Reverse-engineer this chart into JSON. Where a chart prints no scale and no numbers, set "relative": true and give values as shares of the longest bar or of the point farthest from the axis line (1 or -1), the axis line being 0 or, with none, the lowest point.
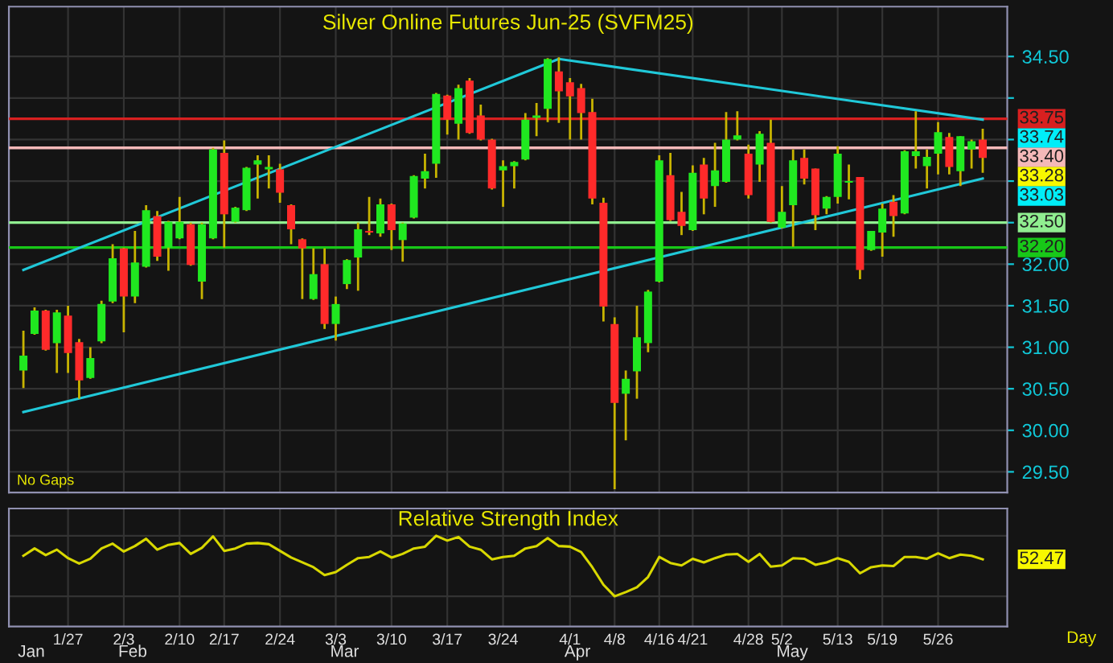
{
  "chart_data": [
    {
      "type": "candlestick",
      "title": "Silver Online Futures Jun-25 (SVFM25)",
      "categories": [
        null,
        null,
        null,
        null,
        null,
        null,
        null,
        null,
        null,
        null,
        null,
        null,
        null,
        null,
        null,
        null,
        null,
        null,
        null,
        null,
        null,
        null,
        null,
        null,
        null,
        null,
        null,
        null,
        null,
        null,
        null,
        null,
        null,
        null,
        null,
        null,
        null,
        null,
        null,
        null,
        null,
        null,
        null,
        null,
        null,
        null,
        null,
        null,
        null,
        null,
        null,
        null,
        null,
        null,
        null,
        null,
        null,
        null,
        null,
        null,
        null,
        null,
        null,
        null,
        null,
        null,
        null,
        null,
        null,
        null,
        null,
        null,
        null,
        null,
        null,
        null,
        null,
        null,
        null,
        null,
        null,
        null,
        null,
        null,
        null,
        null,
        null
      ],
      "ohlc": [
        [
          30.72,
          31.2,
          30.51,
          30.9
        ],
        [
          31.16,
          31.48,
          31.15,
          31.44
        ],
        [
          31.44,
          31.45,
          30.96,
          30.97
        ],
        [
          31.05,
          31.45,
          30.69,
          31.42
        ],
        [
          31.38,
          31.5,
          30.69,
          30.93
        ],
        [
          31.06,
          31.1,
          30.38,
          30.6
        ],
        [
          30.63,
          31.0,
          30.62,
          30.87
        ],
        [
          31.07,
          31.56,
          31.05,
          31.52
        ],
        [
          31.55,
          32.24,
          31.53,
          32.07
        ],
        [
          32.19,
          32.2,
          31.18,
          31.61
        ],
        [
          31.61,
          32.4,
          31.53,
          32.02
        ],
        [
          31.97,
          32.71,
          31.96,
          32.65
        ],
        [
          32.58,
          32.64,
          32.04,
          32.09
        ],
        [
          32.2,
          32.52,
          31.92,
          32.51
        ],
        [
          32.31,
          32.81,
          32.3,
          32.51
        ],
        [
          32.48,
          32.5,
          31.98,
          31.99
        ],
        [
          31.79,
          32.5,
          31.58,
          32.48
        ],
        [
          32.31,
          33.4,
          32.3,
          33.38
        ],
        [
          33.34,
          33.49,
          32.2,
          32.6
        ],
        [
          32.51,
          32.69,
          32.5,
          32.68
        ],
        [
          32.65,
          33.17,
          32.64,
          33.16
        ],
        [
          33.2,
          33.31,
          32.79,
          33.25
        ],
        [
          33.14,
          33.31,
          32.91,
          33.17
        ],
        [
          33.14,
          33.21,
          32.74,
          32.86
        ],
        [
          32.71,
          32.72,
          32.24,
          32.42
        ],
        [
          32.3,
          32.31,
          31.58,
          32.19
        ],
        [
          31.58,
          32.19,
          31.57,
          31.88
        ],
        [
          32.0,
          32.19,
          31.22,
          31.28
        ],
        [
          31.28,
          31.61,
          31.08,
          31.52
        ],
        [
          31.76,
          32.06,
          31.7,
          32.05
        ],
        [
          32.08,
          32.5,
          31.68,
          32.42
        ],
        [
          32.4,
          32.81,
          32.35,
          32.38
        ],
        [
          32.37,
          32.79,
          32.33,
          32.72
        ],
        [
          32.72,
          32.73,
          32.17,
          32.41
        ],
        [
          32.29,
          32.5,
          32.03,
          32.49
        ],
        [
          32.56,
          33.07,
          32.55,
          33.06
        ],
        [
          33.03,
          33.33,
          32.91,
          33.12
        ],
        [
          33.21,
          34.06,
          33.04,
          34.05
        ],
        [
          34.03,
          34.04,
          33.56,
          33.74
        ],
        [
          33.69,
          34.16,
          33.5,
          34.12
        ],
        [
          34.21,
          34.24,
          33.57,
          33.58
        ],
        [
          33.79,
          33.92,
          33.49,
          33.5
        ],
        [
          33.5,
          33.51,
          32.9,
          32.91
        ],
        [
          33.13,
          33.25,
          32.69,
          33.18
        ],
        [
          33.18,
          33.24,
          32.91,
          33.23
        ],
        [
          33.26,
          33.82,
          33.25,
          33.74
        ],
        [
          33.76,
          33.94,
          33.54,
          33.79
        ],
        [
          33.87,
          34.48,
          33.71,
          34.47
        ],
        [
          34.32,
          34.49,
          33.7,
          34.08
        ],
        [
          34.19,
          34.24,
          33.5,
          34.02
        ],
        [
          34.12,
          34.17,
          33.5,
          33.82
        ],
        [
          33.83,
          33.99,
          32.72,
          32.79
        ],
        [
          32.74,
          32.8,
          31.31,
          31.49
        ],
        [
          31.28,
          31.36,
          29.29,
          30.33
        ],
        [
          30.44,
          30.72,
          29.88,
          30.62
        ],
        [
          30.71,
          31.5,
          30.38,
          31.12
        ],
        [
          31.05,
          31.69,
          30.94,
          31.67
        ],
        [
          31.79,
          33.31,
          31.78,
          33.25
        ],
        [
          33.07,
          33.34,
          32.52,
          32.53
        ],
        [
          32.63,
          32.87,
          32.35,
          32.46
        ],
        [
          32.41,
          33.19,
          32.4,
          33.1
        ],
        [
          33.2,
          33.28,
          32.6,
          32.79
        ],
        [
          32.94,
          33.46,
          32.69,
          33.13
        ],
        [
          32.99,
          33.83,
          32.98,
          33.5
        ],
        [
          33.5,
          33.84,
          33.49,
          33.55
        ],
        [
          33.33,
          33.44,
          32.79,
          32.83
        ],
        [
          33.2,
          33.6,
          32.99,
          33.57
        ],
        [
          33.46,
          33.74,
          32.5,
          32.51
        ],
        [
          32.44,
          32.94,
          32.43,
          32.63
        ],
        [
          32.71,
          33.38,
          32.21,
          33.25
        ],
        [
          33.28,
          33.38,
          32.96,
          33.03
        ],
        [
          33.15,
          33.15,
          32.41,
          32.59
        ],
        [
          32.67,
          32.82,
          32.6,
          32.81
        ],
        [
          32.81,
          33.42,
          32.73,
          33.33
        ],
        [
          32.98,
          33.2,
          32.78,
          33.0
        ],
        [
          33.05,
          33.05,
          31.82,
          31.93
        ],
        [
          32.17,
          32.4,
          32.16,
          32.4
        ],
        [
          32.38,
          32.73,
          32.09,
          32.67
        ],
        [
          32.75,
          32.83,
          32.33,
          32.58
        ],
        [
          32.61,
          33.37,
          32.6,
          33.36
        ],
        [
          33.3,
          33.84,
          33.15,
          33.36
        ],
        [
          33.18,
          33.38,
          32.91,
          33.29
        ],
        [
          33.33,
          33.71,
          33.08,
          33.59
        ],
        [
          33.53,
          33.58,
          33.08,
          33.17
        ],
        [
          33.12,
          33.54,
          32.94,
          33.54
        ],
        [
          33.38,
          33.5,
          33.15,
          33.48
        ],
        [
          33.5,
          33.63,
          33.1,
          33.28
        ]
      ],
      "series": [
        {
          "type": "line",
          "color": "#20c8d8",
          "values": [
            31.93,
            null,
            null,
            null,
            null,
            null,
            null,
            null,
            null,
            null,
            null,
            null,
            null,
            null,
            null,
            null,
            null,
            null,
            null,
            null,
            null,
            null,
            null,
            null,
            null,
            null,
            null,
            null,
            null,
            null,
            null,
            null,
            null,
            null,
            null,
            null,
            null,
            null,
            null,
            null,
            null,
            null,
            null,
            null,
            null,
            null,
            null,
            null,
            34.47,
            null,
            null,
            null,
            null,
            null,
            null,
            null,
            null,
            null,
            null,
            null,
            null,
            null,
            null,
            null,
            null,
            null,
            null,
            null,
            null,
            null,
            null,
            null,
            null,
            null,
            null,
            null,
            null,
            null,
            null,
            null,
            null,
            null,
            null,
            null,
            null,
            null,
            33.74
          ]
        },
        {
          "type": "line",
          "color": "#20c8d8",
          "values": [
            30.22,
            null,
            null,
            null,
            null,
            null,
            null,
            null,
            null,
            null,
            null,
            null,
            null,
            null,
            null,
            null,
            null,
            null,
            null,
            null,
            null,
            null,
            null,
            null,
            null,
            null,
            null,
            null,
            null,
            null,
            null,
            null,
            null,
            null,
            null,
            null,
            null,
            null,
            null,
            null,
            null,
            null,
            null,
            null,
            null,
            null,
            null,
            null,
            null,
            null,
            null,
            null,
            null,
            null,
            null,
            null,
            null,
            null,
            null,
            null,
            null,
            null,
            null,
            null,
            null,
            null,
            null,
            null,
            null,
            null,
            null,
            null,
            null,
            null,
            null,
            null,
            null,
            null,
            null,
            null,
            null,
            null,
            null,
            null,
            null,
            null,
            33.03
          ]
        }
      ],
      "ylim": [
        29.25,
        35.1
      ],
      "yticks": [
        {
          "value": 29.5,
          "label": "29.50"
        },
        {
          "value": 30,
          "label": "30.00"
        },
        {
          "value": 30.5,
          "label": "30.50"
        },
        {
          "value": 31,
          "label": "31.00"
        },
        {
          "value": 31.5,
          "label": "31.50"
        },
        {
          "value": 32,
          "label": "32.00"
        },
        {
          "value": 32.5,
          "label": null
        },
        {
          "value": 33,
          "label": null
        },
        {
          "value": 33.5,
          "label": null
        },
        {
          "value": 34,
          "label": null
        },
        {
          "value": 34.5,
          "label": "34.50"
        }
      ],
      "ref_lines": [
        {
          "axis": "y",
          "value": 33.75,
          "label": "33.75",
          "color": "#d82020"
        },
        {
          "axis": "y",
          "value": 33.4,
          "label": "33.40",
          "color": "#f4b8b8"
        },
        {
          "axis": "y",
          "value": 32.5,
          "label": "32.50",
          "color": "#90ee90"
        },
        {
          "axis": "y",
          "value": 32.2,
          "label": "32.20",
          "color": "#18c818"
        }
      ],
      "annotations": [
        "No Gaps",
        "33.74",
        "33.28",
        "33.03"
      ],
      "tick_labels": "y",
      "grid": true
    },
    {
      "type": "line",
      "title": "Relative Strength Index",
      "relative": true,
      "categories": [
        null,
        null,
        null,
        null,
        "1/27",
        null,
        null,
        null,
        null,
        "2/3",
        null,
        null,
        null,
        null,
        "2/10",
        null,
        null,
        null,
        "2/17",
        null,
        null,
        null,
        null,
        "2/24",
        null,
        null,
        null,
        null,
        "3/3",
        null,
        null,
        null,
        null,
        "3/10",
        null,
        null,
        null,
        null,
        "3/17",
        null,
        null,
        null,
        null,
        "3/24",
        null,
        null,
        null,
        null,
        null,
        "4/1",
        null,
        null,
        null,
        "4/8",
        null,
        null,
        null,
        "4/16",
        null,
        null,
        "4/21",
        null,
        null,
        null,
        null,
        "4/28",
        null,
        null,
        "5/2",
        null,
        null,
        null,
        null,
        "5/13",
        null,
        null,
        null,
        "5/19",
        null,
        null,
        null,
        null,
        "5/26",
        null,
        null,
        null,
        null
      ],
      "series": [
        {
          "color": "#d8d800",
          "values": [
            0.67,
            0.79,
            0.68,
            0.77,
            0.63,
            0.54,
            0.62,
            0.79,
            0.87,
            0.74,
            0.83,
            0.95,
            0.77,
            0.85,
            0.88,
            0.7,
            0.8,
            0.99,
            0.75,
            0.79,
            0.87,
            0.88,
            0.86,
            0.75,
            0.64,
            0.56,
            0.48,
            0.35,
            0.4,
            0.52,
            0.63,
            0.65,
            0.74,
            0.64,
            0.7,
            0.79,
            0.82,
            1,
            0.92,
            0.98,
            0.82,
            0.77,
            0.61,
            0.65,
            0.67,
            0.79,
            0.83,
            0.96,
            0.83,
            0.82,
            0.73,
            0.48,
            0.19,
            0,
            0.07,
            0.15,
            0.32,
            0.65,
            0.55,
            0.51,
            0.62,
            0.56,
            0.63,
            0.69,
            0.7,
            0.57,
            0.7,
            0.49,
            0.51,
            0.63,
            0.62,
            0.52,
            0.56,
            0.63,
            0.57,
            0.38,
            0.48,
            0.51,
            0.5,
            0.65,
            0.65,
            0.62,
            0.71,
            0.63,
            0.69,
            0.67,
            0.61
          ]
        }
      ],
      "annotations": [
        "52.47",
        "Jan",
        "Feb",
        "Mar",
        "Apr",
        "May",
        "Day"
      ],
      "tick_labels": "x",
      "grid": true
    }
  ]
}
